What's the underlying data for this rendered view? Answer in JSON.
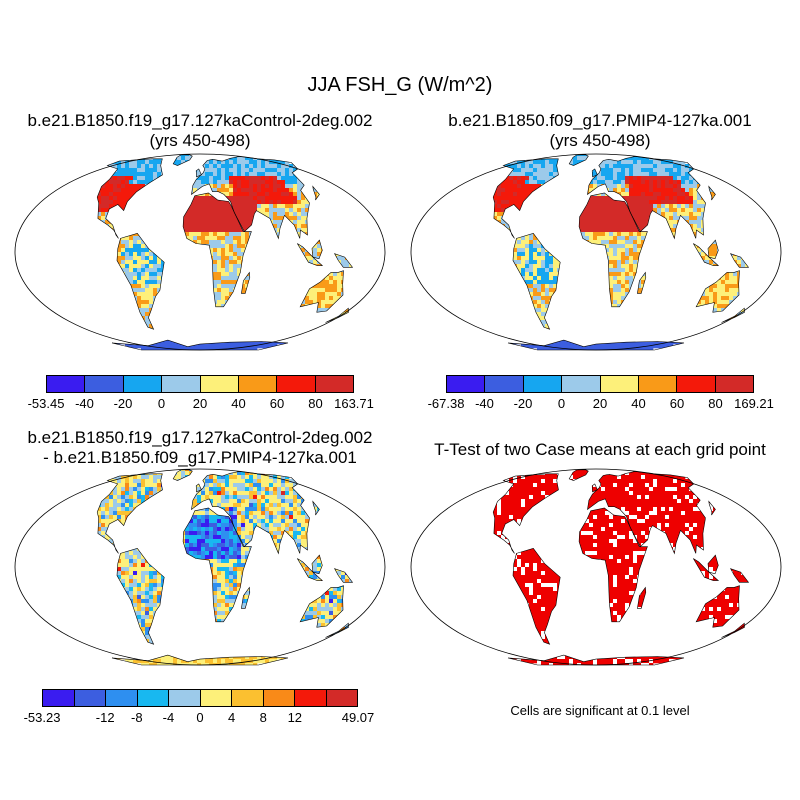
{
  "title": "JJA FSH_G (W/m^2)",
  "panels": [
    {
      "title_line1": "b.e21.B1850.f19_g17.127kaControl-2deg.002",
      "title_line2": "(yrs 450-498)",
      "palette": "absolute",
      "colorbar": {
        "colors": [
          "#3a1cf0",
          "#3c5ee0",
          "#16a6f0",
          "#9ccaea",
          "#fdf07a",
          "#f99a18",
          "#f4190a",
          "#d32a28"
        ],
        "labels": [
          "-53.45",
          "-40",
          "-20",
          "0",
          "20",
          "40",
          "60",
          "80",
          "163.71"
        ]
      }
    },
    {
      "title_line1": "b.e21.B1850.f09_g17.PMIP4-127ka.001",
      "title_line2": "(yrs 450-498)",
      "palette": "absolute",
      "colorbar": {
        "colors": [
          "#3a1cf0",
          "#3c5ee0",
          "#16a6f0",
          "#9ccaea",
          "#fdf07a",
          "#f99a18",
          "#f4190a",
          "#d32a28"
        ],
        "labels": [
          "-67.38",
          "-40",
          "-20",
          "0",
          "20",
          "40",
          "60",
          "80",
          "169.21"
        ]
      }
    },
    {
      "title_line1": "b.e21.B1850.f19_g17.127kaControl-2deg.002",
      "title_line2": "- b.e21.B1850.f09_g17.PMIP4-127ka.001",
      "palette": "difference",
      "colorbar": {
        "colors": [
          "#3a1cf0",
          "#3c5ee0",
          "#2e8ff0",
          "#18b8f0",
          "#9ccaea",
          "#fdf07a",
          "#fbc030",
          "#f98a18",
          "#f4190a",
          "#d32a28"
        ],
        "labels": [
          "-53.23",
          "",
          "-12",
          "-8",
          "-4",
          "0",
          "4",
          "8",
          "12",
          "",
          "49.07"
        ]
      }
    },
    {
      "title_line1": "T-Test of two Case means at each grid point",
      "title_line2": "",
      "palette": "ttest",
      "note": "Cells are significant at 0.1 level"
    }
  ]
}
